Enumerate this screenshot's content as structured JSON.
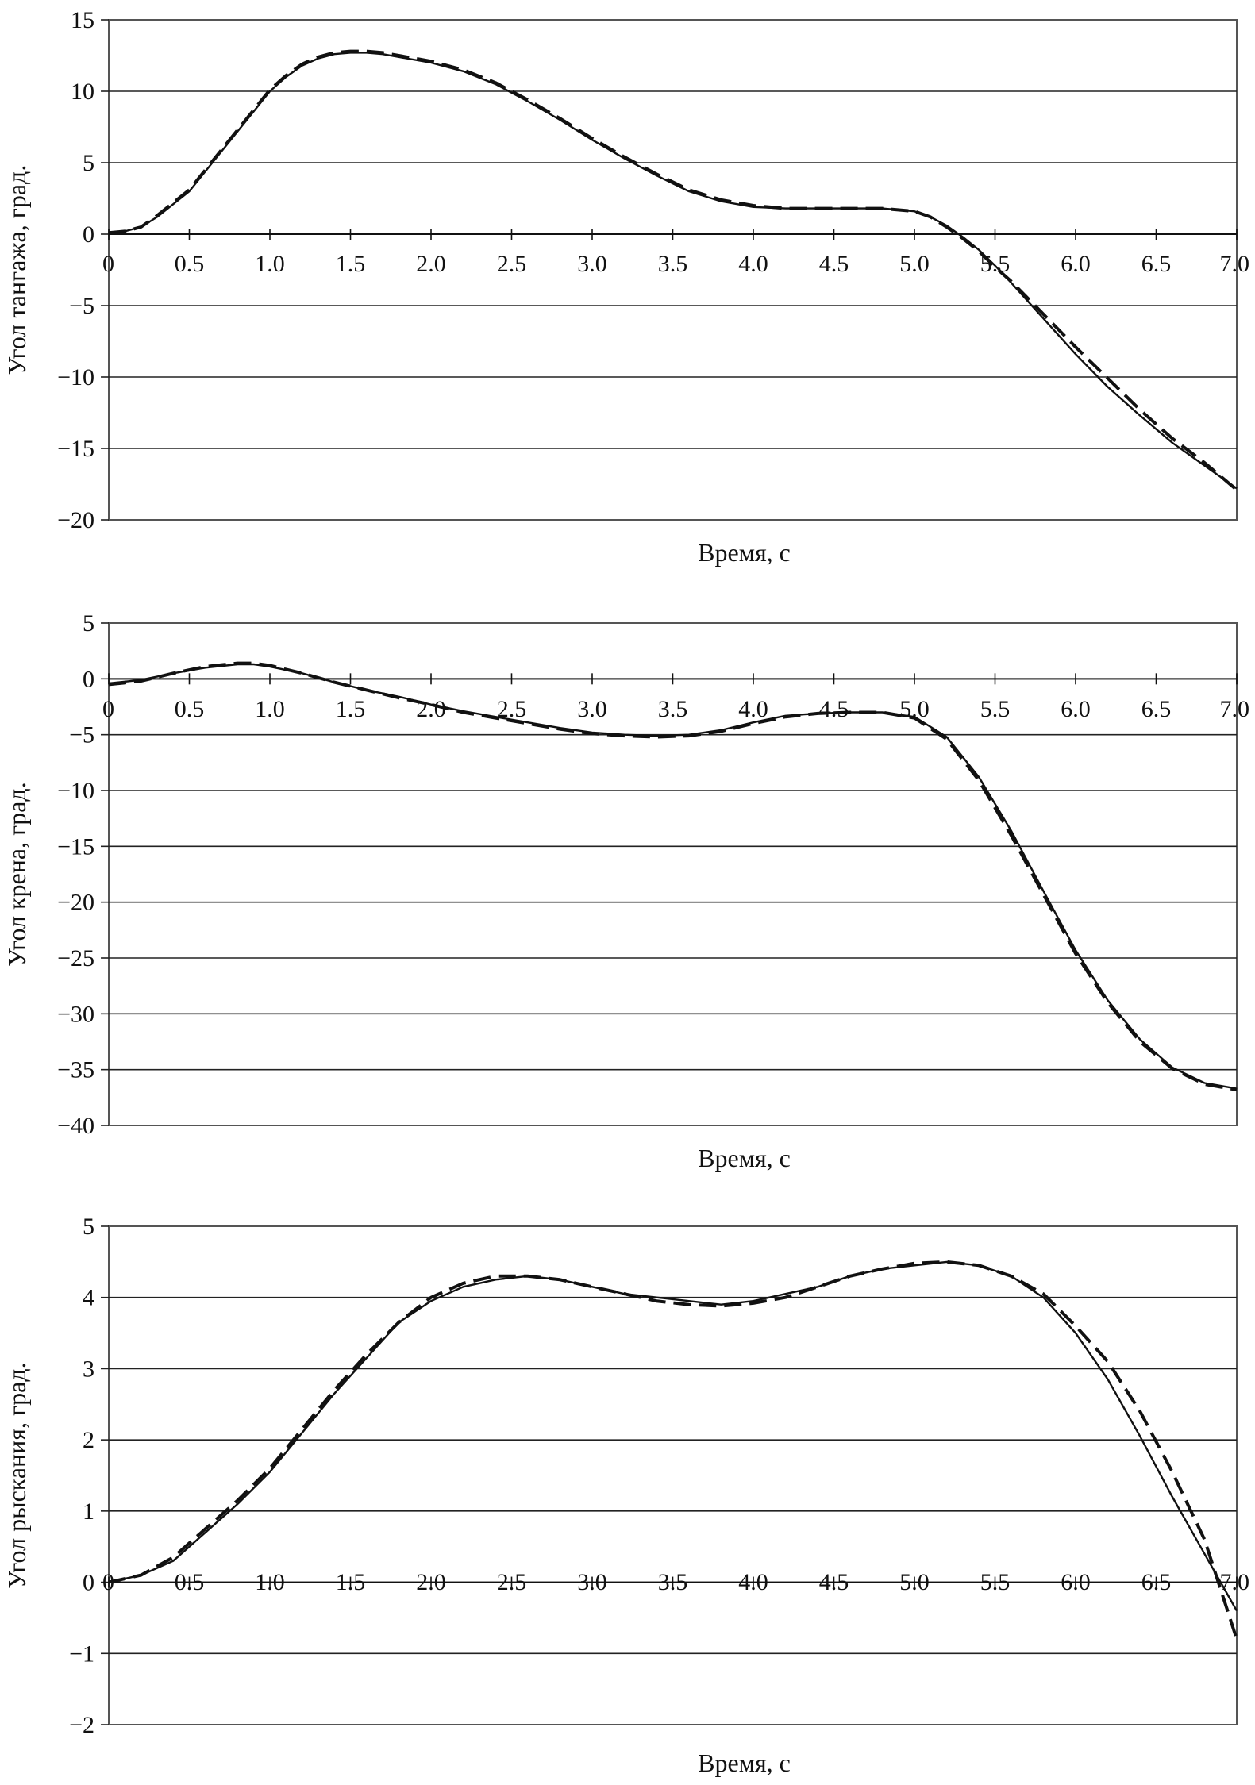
{
  "chart_data": [
    {
      "type": "line",
      "xlabel": "Время, с",
      "ylabel": "Угол тангажа, град.",
      "xlim": [
        0,
        7
      ],
      "ylim": [
        -20,
        15
      ],
      "yticks": [
        15,
        10,
        5,
        0,
        -5,
        -10,
        -15,
        -20
      ],
      "ytick_labels": [
        "15",
        "10",
        "5",
        "0",
        "−5",
        "−10",
        "−15",
        "−20"
      ],
      "xticks": [
        0,
        0.5,
        1.0,
        1.5,
        2.0,
        2.5,
        3.0,
        3.5,
        4.0,
        4.5,
        5.0,
        5.5,
        6.0,
        6.5,
        7.0
      ],
      "xtick_labels": [
        "0",
        "0.5",
        "1.0",
        "1.5",
        "2.0",
        "2.5",
        "3.0",
        "3.5",
        "4.0",
        "4.5",
        "5.0",
        "5.5",
        "6.0",
        "6.5",
        "7.0"
      ],
      "grid": "horizontal",
      "series": [
        {
          "style": "solid",
          "x": [
            0,
            0.1,
            0.2,
            0.3,
            0.5,
            0.7,
            0.9,
            1.0,
            1.1,
            1.2,
            1.3,
            1.4,
            1.5,
            1.6,
            1.7,
            1.8,
            2.0,
            2.2,
            2.4,
            2.6,
            2.8,
            3.0,
            3.2,
            3.4,
            3.6,
            3.8,
            4.0,
            4.2,
            4.4,
            4.6,
            4.8,
            5.0,
            5.1,
            5.2,
            5.3,
            5.4,
            5.5,
            5.6,
            5.8,
            6.0,
            6.2,
            6.4,
            6.6,
            6.8,
            7.0
          ],
          "y": [
            0.1,
            0.2,
            0.5,
            1.2,
            3.0,
            5.8,
            8.6,
            10.0,
            11.0,
            11.8,
            12.3,
            12.6,
            12.7,
            12.7,
            12.6,
            12.4,
            12.0,
            11.4,
            10.5,
            9.3,
            8.0,
            6.6,
            5.3,
            4.1,
            3.0,
            2.3,
            1.9,
            1.8,
            1.8,
            1.8,
            1.8,
            1.6,
            1.2,
            0.6,
            -0.2,
            -1.1,
            -2.2,
            -3.4,
            -5.9,
            -8.4,
            -10.7,
            -12.7,
            -14.6,
            -16.2,
            -17.8
          ]
        },
        {
          "style": "dashed",
          "x": [
            0,
            0.1,
            0.2,
            0.3,
            0.5,
            0.7,
            0.9,
            1.0,
            1.1,
            1.2,
            1.3,
            1.4,
            1.5,
            1.6,
            1.7,
            1.8,
            2.0,
            2.2,
            2.4,
            2.6,
            2.8,
            3.0,
            3.2,
            3.4,
            3.6,
            3.8,
            4.0,
            4.2,
            4.4,
            4.6,
            4.8,
            5.0,
            5.1,
            5.2,
            5.3,
            5.4,
            5.5,
            5.6,
            5.8,
            6.0,
            6.2,
            6.4,
            6.6,
            6.8,
            7.0
          ],
          "y": [
            0.1,
            0.2,
            0.5,
            1.3,
            3.1,
            5.9,
            8.7,
            10.1,
            11.1,
            11.9,
            12.4,
            12.7,
            12.8,
            12.8,
            12.7,
            12.5,
            12.1,
            11.5,
            10.6,
            9.4,
            8.1,
            6.7,
            5.4,
            4.2,
            3.1,
            2.4,
            2.0,
            1.8,
            1.8,
            1.8,
            1.8,
            1.6,
            1.2,
            0.5,
            -0.3,
            -1.2,
            -2.3,
            -3.3,
            -5.6,
            -7.9,
            -10.1,
            -12.3,
            -14.3,
            -16.0,
            -17.9
          ]
        }
      ]
    },
    {
      "type": "line",
      "xlabel": "Время, с",
      "ylabel": "Угол крена, град.",
      "xlim": [
        0,
        7
      ],
      "ylim": [
        -40,
        5
      ],
      "yticks": [
        5,
        0,
        -5,
        -10,
        -15,
        -20,
        -25,
        -30,
        -35,
        -40
      ],
      "ytick_labels": [
        "5",
        "0",
        "−5",
        "−10",
        "−15",
        "−20",
        "−25",
        "−30",
        "−35",
        "−40"
      ],
      "xticks": [
        0,
        0.5,
        1.0,
        1.5,
        2.0,
        2.5,
        3.0,
        3.5,
        4.0,
        4.5,
        5.0,
        5.5,
        6.0,
        6.5,
        7.0
      ],
      "xtick_labels": [
        "0",
        "0.5",
        "1.0",
        "1.5",
        "2.0",
        "2.5",
        "3.0",
        "3.5",
        "4.0",
        "4.5",
        "5.0",
        "5.5",
        "6.0",
        "6.5",
        "7.0"
      ],
      "grid": "horizontal",
      "series": [
        {
          "style": "solid",
          "x": [
            0,
            0.2,
            0.4,
            0.6,
            0.8,
            0.9,
            1.0,
            1.2,
            1.4,
            1.6,
            1.8,
            2.0,
            2.2,
            2.4,
            2.6,
            2.8,
            3.0,
            3.2,
            3.4,
            3.6,
            3.8,
            4.0,
            4.2,
            4.4,
            4.6,
            4.8,
            5.0,
            5.2,
            5.4,
            5.6,
            5.8,
            6.0,
            6.2,
            6.4,
            6.6,
            6.8,
            7.0
          ],
          "y": [
            -0.4,
            -0.1,
            0.5,
            1.0,
            1.3,
            1.3,
            1.1,
            0.5,
            -0.3,
            -1.0,
            -1.6,
            -2.3,
            -2.9,
            -3.4,
            -3.9,
            -4.4,
            -4.8,
            -5.0,
            -5.1,
            -5.0,
            -4.6,
            -3.9,
            -3.3,
            -3.1,
            -3.0,
            -3.0,
            -3.4,
            -5.2,
            -8.8,
            -13.6,
            -19.0,
            -24.3,
            -28.8,
            -32.3,
            -34.8,
            -36.2,
            -36.7
          ]
        },
        {
          "style": "dashed",
          "x": [
            0,
            0.2,
            0.4,
            0.6,
            0.8,
            0.9,
            1.0,
            1.2,
            1.4,
            1.6,
            1.8,
            2.0,
            2.2,
            2.4,
            2.6,
            2.8,
            3.0,
            3.2,
            3.4,
            3.6,
            3.8,
            4.0,
            4.2,
            4.4,
            4.6,
            4.8,
            5.0,
            5.2,
            5.4,
            5.6,
            5.8,
            6.0,
            6.2,
            6.4,
            6.6,
            6.8,
            7.0
          ],
          "y": [
            -0.5,
            -0.2,
            0.5,
            1.1,
            1.4,
            1.4,
            1.2,
            0.5,
            -0.3,
            -1.0,
            -1.7,
            -2.3,
            -3.0,
            -3.5,
            -4.0,
            -4.5,
            -4.9,
            -5.1,
            -5.2,
            -5.1,
            -4.7,
            -4.0,
            -3.4,
            -3.1,
            -3.0,
            -3.0,
            -3.5,
            -5.4,
            -9.1,
            -14.0,
            -19.3,
            -24.6,
            -29.0,
            -32.5,
            -34.9,
            -36.3,
            -36.8
          ]
        }
      ]
    },
    {
      "type": "line",
      "xlabel": "Время, с",
      "ylabel": "Угол рыскания, град.",
      "xlim": [
        0,
        7
      ],
      "ylim": [
        -2,
        5
      ],
      "yticks": [
        5,
        4,
        3,
        2,
        1,
        0,
        -1,
        -2
      ],
      "ytick_labels": [
        "5",
        "4",
        "3",
        "2",
        "1",
        "0",
        "−1",
        "−2"
      ],
      "xticks": [
        0,
        0.5,
        1.0,
        1.5,
        2.0,
        2.5,
        3.0,
        3.5,
        4.0,
        4.5,
        5.0,
        5.5,
        6.0,
        6.5,
        7.0
      ],
      "xtick_labels": [
        "0",
        "0.5",
        "1.0",
        "1.5",
        "2.0",
        "2.5",
        "3.0",
        "3.5",
        "4.0",
        "4.5",
        "5.0",
        "5.5",
        "6.0",
        "6.5",
        "7.0"
      ],
      "grid": "horizontal",
      "series": [
        {
          "style": "solid",
          "x": [
            0,
            0.2,
            0.4,
            0.6,
            0.8,
            1.0,
            1.2,
            1.4,
            1.6,
            1.8,
            2.0,
            2.2,
            2.4,
            2.6,
            2.8,
            3.0,
            3.2,
            3.4,
            3.6,
            3.8,
            4.0,
            4.2,
            4.4,
            4.6,
            4.8,
            5.0,
            5.2,
            5.4,
            5.6,
            5.8,
            6.0,
            6.2,
            6.4,
            6.6,
            6.8,
            7.0
          ],
          "y": [
            0.0,
            0.1,
            0.3,
            0.7,
            1.1,
            1.55,
            2.1,
            2.65,
            3.15,
            3.65,
            3.95,
            4.15,
            4.25,
            4.3,
            4.25,
            4.15,
            4.05,
            4.0,
            3.95,
            3.9,
            3.95,
            4.05,
            4.15,
            4.3,
            4.4,
            4.45,
            4.5,
            4.45,
            4.3,
            4.0,
            3.5,
            2.85,
            2.05,
            1.2,
            0.4,
            -0.4
          ]
        },
        {
          "style": "dashed",
          "x": [
            0,
            0.2,
            0.4,
            0.6,
            0.8,
            1.0,
            1.2,
            1.4,
            1.6,
            1.8,
            2.0,
            2.2,
            2.4,
            2.6,
            2.8,
            3.0,
            3.2,
            3.4,
            3.6,
            3.8,
            4.0,
            4.2,
            4.4,
            4.6,
            4.8,
            5.0,
            5.2,
            5.4,
            5.6,
            5.8,
            6.0,
            6.2,
            6.4,
            6.6,
            6.8,
            7.0
          ],
          "y": [
            0.0,
            0.1,
            0.35,
            0.75,
            1.15,
            1.6,
            2.15,
            2.7,
            3.2,
            3.65,
            4.0,
            4.2,
            4.3,
            4.3,
            4.25,
            4.15,
            4.05,
            3.95,
            3.9,
            3.88,
            3.92,
            4.0,
            4.15,
            4.3,
            4.4,
            4.48,
            4.5,
            4.45,
            4.3,
            4.05,
            3.6,
            3.1,
            2.4,
            1.55,
            0.6,
            -0.8
          ]
        }
      ]
    }
  ]
}
